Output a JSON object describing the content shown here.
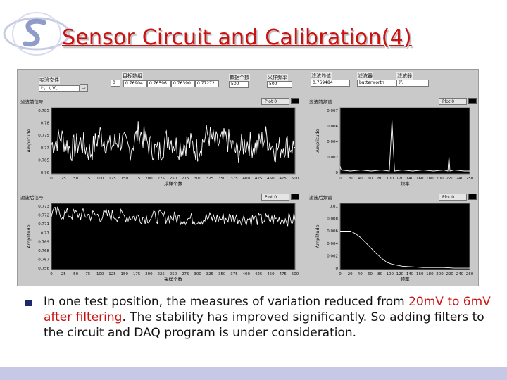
{
  "slide": {
    "title": "Sensor Circuit and Calibration(4)",
    "bullet_lead": "In one test position, the measures of variation reduced from ",
    "bullet_highlight": "20mV to 6mV after filtering",
    "bullet_tail": ". The stability has improved significantly. So adding filters to the circuit and DAQ program is under consideration."
  },
  "controls": {
    "path_label": "实验文件",
    "path_value": "f:\\...\\LV\\...",
    "array_label": "目标数组",
    "array_index": "0",
    "array_values": [
      "0.76904",
      "0.76596",
      "0.76390",
      "0.77272"
    ],
    "count_label": "数据个数",
    "count_value": "500",
    "rate_label": "采样频率",
    "rate_value": "500",
    "mean_label": "滤波均值",
    "mean_value": "0.769484",
    "filter_label": "滤波器",
    "filter_value": "butterworth",
    "window_label": "滤波器",
    "window_value": "光"
  },
  "graphs": {
    "tl_label": "滤波前信号",
    "tr_label": "滤波前频谱",
    "bl_label": "滤波后信号",
    "br_label": "滤波后频谱",
    "legend": "Plot 0",
    "ylabel": "Amplitude",
    "xlabel_time": "采样个数",
    "xlabel_freq": "频率"
  },
  "chart_data": [
    {
      "type": "line",
      "title": "滤波前信号",
      "ylabel": "Amplitude",
      "xlabel": "采样个数",
      "xlim": [
        0,
        500
      ],
      "ylim": [
        0.76,
        0.785
      ],
      "yticks": [
        "0.785",
        "0.78",
        "0.775",
        "0.77",
        "0.765",
        "0.76"
      ],
      "xticks": [
        "0",
        "25",
        "50",
        "75",
        "100",
        "125",
        "150",
        "175",
        "200",
        "225",
        "250",
        "275",
        "300",
        "325",
        "350",
        "375",
        "400",
        "425",
        "450",
        "475",
        "500"
      ],
      "series": [
        {
          "x": [
            0,
            20,
            40,
            60,
            80,
            100,
            120,
            140,
            160,
            180,
            200,
            220,
            240,
            260,
            280,
            300,
            320,
            340,
            360,
            380,
            400,
            420,
            440,
            460,
            480,
            500
          ],
          "values": [
            0.771,
            0.774,
            0.769,
            0.772,
            0.768,
            0.775,
            0.77,
            0.773,
            0.769,
            0.776,
            0.771,
            0.768,
            0.774,
            0.77,
            0.772,
            0.769,
            0.775,
            0.771,
            0.773,
            0.768,
            0.772,
            0.77,
            0.774,
            0.769,
            0.771,
            0.77
          ]
        }
      ]
    },
    {
      "type": "line",
      "title": "滤波前频谱",
      "ylabel": "Amplitude",
      "xlabel": "频率",
      "xlim": [
        0,
        250
      ],
      "ylim": [
        0,
        0.007
      ],
      "yticks": [
        "0.007",
        "0.006",
        "0.004",
        "0.002",
        "0"
      ],
      "xticks": [
        "0",
        "20",
        "40",
        "60",
        "80",
        "100",
        "120",
        "140",
        "160",
        "180",
        "200",
        "220",
        "240",
        "250"
      ],
      "series": [
        {
          "x": [
            0,
            2,
            20,
            40,
            60,
            80,
            95,
            100,
            105,
            120,
            140,
            160,
            180,
            200,
            208,
            210,
            212,
            220,
            240,
            250
          ],
          "values": [
            0.0008,
            0.0004,
            0.0003,
            0.0004,
            0.0003,
            0.0004,
            0.0003,
            0.0057,
            0.0003,
            0.0004,
            0.0003,
            0.0004,
            0.0003,
            0.0004,
            0.0003,
            0.0018,
            0.0003,
            0.0004,
            0.0003,
            0.0003
          ]
        }
      ]
    },
    {
      "type": "line",
      "title": "滤波后信号",
      "ylabel": "Amplitude",
      "xlabel": "采样个数",
      "xlim": [
        0,
        500
      ],
      "ylim": [
        0.756,
        0.773
      ],
      "yticks": [
        "0.773",
        "0.772",
        "0.771",
        "0.77",
        "0.769",
        "0.768",
        "0.767",
        "0.756"
      ],
      "xticks": [
        "0",
        "25",
        "50",
        "75",
        "100",
        "125",
        "150",
        "175",
        "200",
        "225",
        "250",
        "275",
        "300",
        "325",
        "350",
        "375",
        "400",
        "425",
        "450",
        "475",
        "500"
      ],
      "series": [
        {
          "x": [
            0,
            25,
            50,
            75,
            100,
            125,
            150,
            175,
            200,
            225,
            250,
            275,
            300,
            325,
            350,
            375,
            400,
            425,
            450,
            475,
            500
          ],
          "values": [
            0.7705,
            0.7703,
            0.7701,
            0.77,
            0.7698,
            0.77,
            0.7697,
            0.7695,
            0.7694,
            0.7696,
            0.7693,
            0.7691,
            0.769,
            0.7692,
            0.7691,
            0.7693,
            0.769,
            0.7689,
            0.7688,
            0.769,
            0.7688
          ]
        }
      ]
    },
    {
      "type": "line",
      "title": "滤波后频谱",
      "ylabel": "Amplitude",
      "xlabel": "频率",
      "xlim": [
        0,
        250
      ],
      "ylim": [
        0,
        0.01
      ],
      "yticks": [
        "0.01",
        "0.008",
        "0.006",
        "0.004",
        "0.002",
        "0"
      ],
      "xticks": [
        "0",
        "20",
        "40",
        "60",
        "80",
        "100",
        "120",
        "140",
        "160",
        "180",
        "200",
        "220",
        "240",
        "260"
      ],
      "series": [
        {
          "x": [
            0,
            20,
            30,
            40,
            50,
            60,
            70,
            80,
            90,
            100,
            120,
            140,
            160,
            180,
            200,
            220,
            240,
            250
          ],
          "values": [
            0.0058,
            0.0058,
            0.0054,
            0.0048,
            0.004,
            0.0032,
            0.0024,
            0.0017,
            0.0011,
            0.0008,
            0.0005,
            0.0004,
            0.0003,
            0.0003,
            0.0003,
            0.0002,
            0.0002,
            0.0002
          ]
        }
      ]
    }
  ]
}
